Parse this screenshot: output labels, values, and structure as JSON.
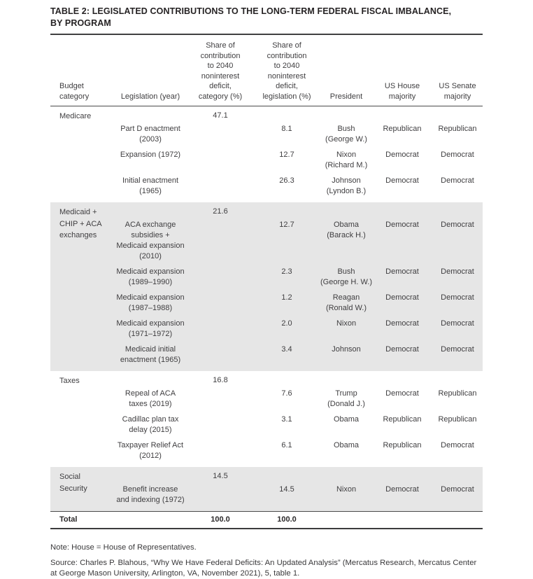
{
  "title": "TABLE 2: LEGISLATED CONTRIBUTIONS TO THE LONG-TERM FEDERAL FISCAL IMBALANCE,\nBY PROGRAM",
  "colors": {
    "shaded_row_bg": "#e6e6e6",
    "text": "#3f3e40",
    "rule_dark": "#404041"
  },
  "table": {
    "columns": [
      "Budget\ncategory",
      "Legislation (year)",
      "Share of\ncontribution\nto 2040\nnoninterest\ndeficit,\ncategory (%)",
      "Share of\ncontribution\nto 2040\nnoninterest\ndeficit,\nlegislation (%)",
      "President",
      "US House\nmajority",
      "US Senate\nmajority"
    ],
    "sections": [
      {
        "category": "Medicare",
        "share": "47.1",
        "shaded": false,
        "rows": [
          {
            "legislation": "Part D enactment\n(2003)",
            "share": "8.1",
            "president": "Bush\n(George W.)",
            "house": "Republican",
            "senate": "Republican"
          },
          {
            "legislation": "Expansion (1972)",
            "share": "12.7",
            "president": "Nixon\n(Richard M.)",
            "house": "Democrat",
            "senate": "Democrat"
          },
          {
            "legislation": "Initial enactment\n(1965)",
            "share": "26.3",
            "president": "Johnson\n(Lyndon B.)",
            "house": "Democrat",
            "senate": "Democrat"
          }
        ]
      },
      {
        "category": "Medicaid +\nCHIP + ACA\nexchanges",
        "share": "21.6",
        "shaded": true,
        "rows": [
          {
            "legislation": "ACA exchange\nsubsidies +\nMedicaid expansion\n(2010)",
            "share": "12.7",
            "president": "Obama\n(Barack H.)",
            "house": "Democrat",
            "senate": "Democrat"
          },
          {
            "legislation": "Medicaid expansion\n(1989–1990)",
            "share": "2.3",
            "president": "Bush\n(George H. W.)",
            "house": "Democrat",
            "senate": "Democrat"
          },
          {
            "legislation": "Medicaid expansion\n(1987–1988)",
            "share": "1.2",
            "president": "Reagan\n(Ronald W.)",
            "house": "Democrat",
            "senate": "Democrat"
          },
          {
            "legislation": "Medicaid expansion\n(1971–1972)",
            "share": "2.0",
            "president": "Nixon",
            "house": "Democrat",
            "senate": "Democrat"
          },
          {
            "legislation": "Medicaid initial\nenactment (1965)",
            "share": "3.4",
            "president": "Johnson",
            "house": "Democrat",
            "senate": "Democrat"
          }
        ]
      },
      {
        "category": "Taxes",
        "share": "16.8",
        "shaded": false,
        "rows": [
          {
            "legislation": "Repeal of ACA\ntaxes (2019)",
            "share": "7.6",
            "president": "Trump\n(Donald J.)",
            "house": "Democrat",
            "senate": "Republican"
          },
          {
            "legislation": "Cadillac plan tax\ndelay (2015)",
            "share": "3.1",
            "president": "Obama",
            "house": "Republican",
            "senate": "Republican"
          },
          {
            "legislation": "Taxpayer Relief Act\n(2012)",
            "share": "6.1",
            "president": "Obama",
            "house": "Republican",
            "senate": "Democrat"
          }
        ]
      },
      {
        "category": "Social\nSecurity",
        "share": "14.5",
        "shaded": true,
        "rows": [
          {
            "legislation": "Benefit increase\nand indexing (1972)",
            "share": "14.5",
            "president": "Nixon",
            "house": "Democrat",
            "senate": "Democrat"
          }
        ]
      }
    ],
    "total": {
      "label": "Total",
      "category_share": "100.0",
      "legislation_share": "100.0"
    }
  },
  "notes": {
    "note": "Note: House = House of Representatives.",
    "source": "Source: Charles P. Blahous, “Why We Have Federal Deficits: An Updated Analysis” (Mercatus Research, Mercatus Center at George Mason University, Arlington, VA, November 2021), 5, table 1."
  }
}
